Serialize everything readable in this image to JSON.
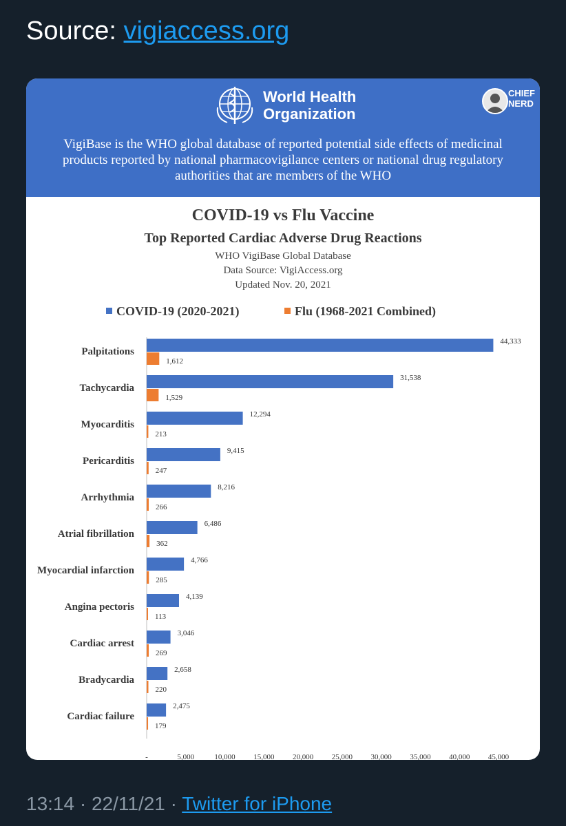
{
  "tweet": {
    "source_prefix": "Source: ",
    "source_link": "vigiaccess.org",
    "timestamp": "13:14 · 22/11/21 · ",
    "client_link": "Twitter for iPhone"
  },
  "banner": {
    "org_name": "World Health\nOrganization",
    "watermark": "CHIEF\nNERD",
    "description": "VigiBase is the WHO global database of reported potential side effects of medicinal products reported by national pharmacovigilance centers or national drug regulatory authorities that are members of the WHO"
  },
  "colors": {
    "covid": "#4472c4",
    "flu": "#ed7d31",
    "banner": "#3e6fc6",
    "link": "#1d9bf0"
  },
  "chart_data": {
    "type": "bar",
    "orientation": "horizontal",
    "title": "COVID-19 vs Flu Vaccine",
    "subtitle": "Top Reported Cardiac Adverse Drug Reactions",
    "notes": [
      "WHO VigiBase Global Database",
      "Data Source: VigiAccess.org",
      "Updated Nov. 20, 2021"
    ],
    "categories": [
      "Palpitations",
      "Tachycardia",
      "Myocarditis",
      "Pericarditis",
      "Arrhythmia",
      "Atrial fibrillation",
      "Myocardial infarction",
      "Angina pectoris",
      "Cardiac arrest",
      "Bradycardia",
      "Cardiac failure"
    ],
    "series": [
      {
        "name": "COVID-19 (2020-2021)",
        "values": [
          44333,
          31538,
          12294,
          9415,
          8216,
          6486,
          4766,
          4139,
          3046,
          2658,
          2475
        ]
      },
      {
        "name": "Flu (1968-2021 Combined)",
        "values": [
          1612,
          1529,
          213,
          247,
          266,
          362,
          285,
          113,
          269,
          220,
          179
        ]
      }
    ],
    "data_labels": [
      [
        "44,333",
        "31,538",
        "12,294",
        "9,415",
        "8,216",
        "6,486",
        "4,766",
        "4,139",
        "3,046",
        "2,658",
        "2,475"
      ],
      [
        "1,612",
        "1,529",
        "213",
        "247",
        "266",
        "362",
        "285",
        "113",
        "269",
        "220",
        "179"
      ]
    ],
    "xticks": [
      0,
      5000,
      10000,
      15000,
      20000,
      25000,
      30000,
      35000,
      40000,
      45000
    ],
    "xtick_labels": [
      "-",
      "5,000",
      "10,000",
      "15,000",
      "20,000",
      "25,000",
      "30,000",
      "35,000",
      "40,000",
      "45,000"
    ],
    "xlim": [
      0,
      45000
    ],
    "grid": false,
    "legend_position": "top"
  }
}
